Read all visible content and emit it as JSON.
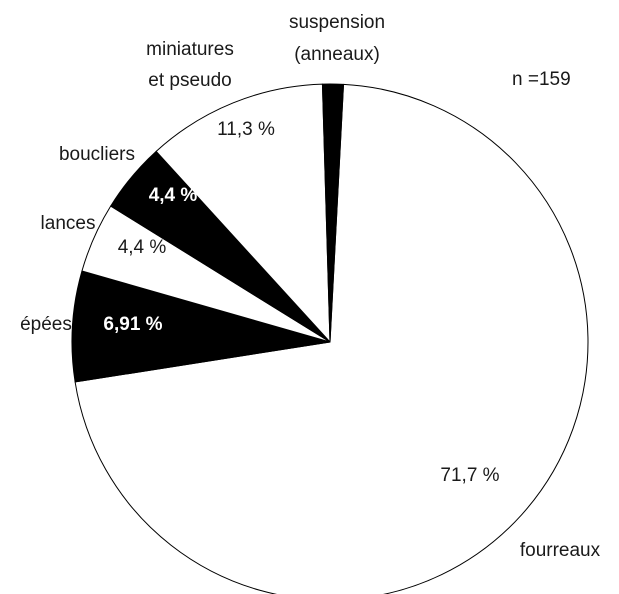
{
  "chart_data": {
    "type": "pie",
    "n_label": "n =159",
    "slices": [
      {
        "name": "fourreaux",
        "label_lines": [
          "fourreaux"
        ],
        "value": 71.7,
        "value_label": "71,7 %",
        "color": "#ffffff",
        "text_color": "#1a1a1a"
      },
      {
        "name": "épées",
        "label_lines": [
          "épées"
        ],
        "value": 6.91,
        "value_label": "6,91 %",
        "color": "#000000",
        "text_color": "#ffffff"
      },
      {
        "name": "lances",
        "label_lines": [
          "lances"
        ],
        "value": 4.4,
        "value_label": "4,4 %",
        "color": "#ffffff",
        "text_color": "#1a1a1a"
      },
      {
        "name": "boucliers",
        "label_lines": [
          "boucliers"
        ],
        "value": 4.4,
        "value_label": "4,4 %",
        "color": "#000000",
        "text_color": "#ffffff"
      },
      {
        "name": "miniatures et pseudo",
        "label_lines": [
          "miniatures",
          "et pseudo"
        ],
        "value": 11.3,
        "value_label": "11,3 %",
        "color": "#ffffff",
        "text_color": "#1a1a1a"
      },
      {
        "name": "suspension (anneaux)",
        "label_lines": [
          "suspension",
          "(anneaux)"
        ],
        "value": 1.3,
        "value_label": "",
        "color": "#000000",
        "text_color": "#ffffff"
      }
    ]
  }
}
